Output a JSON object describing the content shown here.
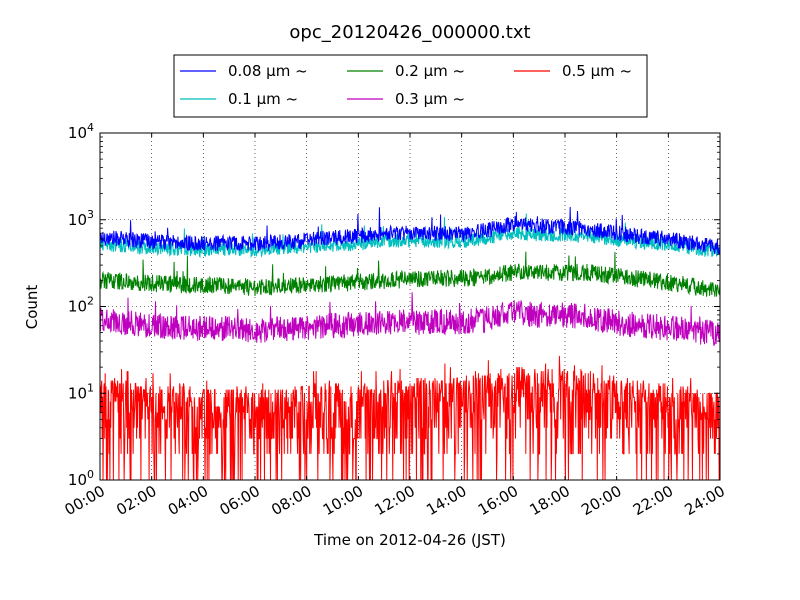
{
  "chart_data": {
    "type": "line",
    "title": "opc_20120426_000000.txt",
    "xlabel": "Time on 2012-04-26 (JST)",
    "ylabel": "Count",
    "xlim": [
      "2012-04-26 00:00",
      "2012-04-27 00:00"
    ],
    "ylim": [
      1,
      10000
    ],
    "yscale": "log",
    "grid": true,
    "legend_position": "top-center",
    "x_ticks": [
      "00:00",
      "02:00",
      "04:00",
      "06:00",
      "08:00",
      "10:00",
      "12:00",
      "14:00",
      "16:00",
      "18:00",
      "20:00",
      "22:00",
      "24:00"
    ],
    "y_ticks": [
      {
        "value": 1,
        "base": "10",
        "exp": "0"
      },
      {
        "value": 10,
        "base": "10",
        "exp": "1"
      },
      {
        "value": 100,
        "base": "10",
        "exp": "2"
      },
      {
        "value": 1000,
        "base": "10",
        "exp": "3"
      },
      {
        "value": 10000,
        "base": "10",
        "exp": "4"
      }
    ],
    "x_hours": [
      0,
      1,
      2,
      3,
      4,
      5,
      6,
      7,
      8,
      9,
      10,
      11,
      12,
      13,
      14,
      15,
      16,
      17,
      18,
      19,
      20,
      21,
      22,
      23,
      24
    ],
    "series": [
      {
        "name": "0.08 μm ~",
        "color": "#0000ff",
        "values": [
          620,
          600,
          560,
          540,
          530,
          540,
          530,
          550,
          580,
          620,
          650,
          700,
          720,
          700,
          680,
          760,
          900,
          850,
          820,
          780,
          700,
          640,
          600,
          540,
          480
        ]
      },
      {
        "name": "0.2 μm ~",
        "color": "#008000",
        "values": [
          200,
          195,
          185,
          180,
          175,
          175,
          165,
          170,
          180,
          185,
          190,
          200,
          205,
          210,
          210,
          220,
          250,
          240,
          250,
          245,
          225,
          205,
          190,
          170,
          150
        ]
      },
      {
        "name": "0.5 μm ~",
        "color": "#ff0000",
        "values": [
          8,
          7,
          6.5,
          6.5,
          6,
          6,
          5.5,
          6,
          6.5,
          7,
          7,
          7.5,
          7.5,
          8,
          8,
          9,
          11,
          10,
          10,
          9.5,
          8,
          7,
          6.5,
          6,
          5.5
        ]
      },
      {
        "name": "0.1 μm ~",
        "color": "#00bfbf",
        "values": [
          520,
          500,
          470,
          460,
          450,
          460,
          450,
          470,
          490,
          510,
          530,
          560,
          580,
          570,
          560,
          620,
          700,
          680,
          660,
          640,
          590,
          550,
          510,
          470,
          420
        ]
      },
      {
        "name": "0.3 μm ~",
        "color": "#bf00bf",
        "values": [
          70,
          65,
          60,
          58,
          55,
          55,
          53,
          55,
          58,
          60,
          62,
          65,
          66,
          67,
          67,
          72,
          85,
          80,
          80,
          75,
          65,
          60,
          57,
          52,
          48
        ]
      }
    ]
  }
}
